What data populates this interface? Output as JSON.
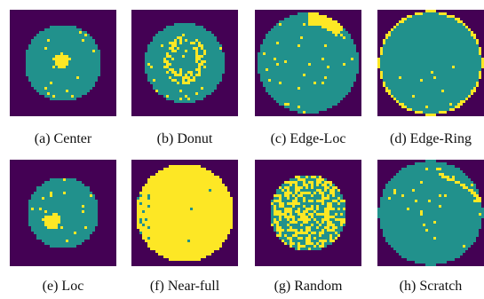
{
  "figure": {
    "colors": {
      "background": "#440154",
      "wafer": "#21918c",
      "defect": "#fde725"
    },
    "panels": [
      {
        "id": "center",
        "caption": "(a)  Center",
        "pattern": "center"
      },
      {
        "id": "donut",
        "caption": "(b)  Donut",
        "pattern": "donut"
      },
      {
        "id": "edge-loc",
        "caption": "(c)  Edge-Loc",
        "pattern": "edge-loc"
      },
      {
        "id": "edge-ring",
        "caption": "(d)  Edge-Ring",
        "pattern": "edge-ring"
      },
      {
        "id": "loc",
        "caption": "(e)  Loc",
        "pattern": "loc"
      },
      {
        "id": "near-full",
        "caption": "(f)  Near-full",
        "pattern": "near-full"
      },
      {
        "id": "random",
        "caption": "(g)  Random",
        "pattern": "random"
      },
      {
        "id": "scratch",
        "caption": "(h)  Scratch",
        "pattern": "scratch"
      }
    ]
  }
}
